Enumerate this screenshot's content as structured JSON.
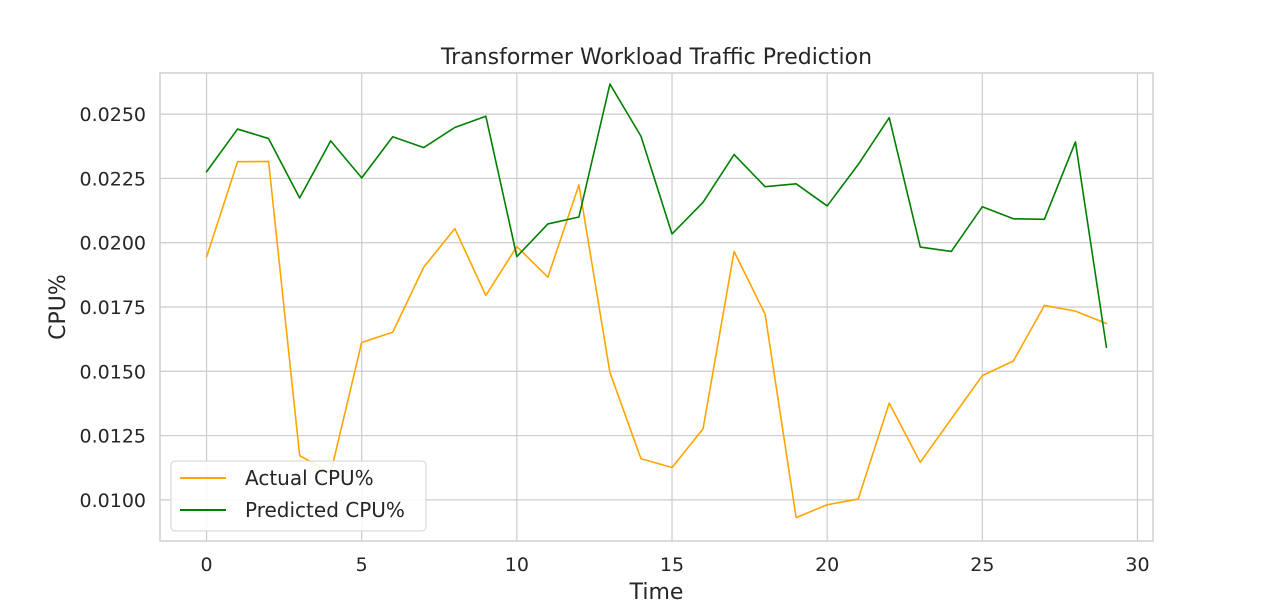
{
  "chart_data": {
    "type": "line",
    "title": "Transformer Workload Traffic Prediction",
    "xlabel": "Time",
    "ylabel": "CPU%",
    "xlim": [
      -1.5,
      30.5
    ],
    "ylim": [
      0.0084,
      0.0266
    ],
    "xticks": [
      0,
      5,
      10,
      15,
      20,
      25,
      30
    ],
    "xtick_labels": [
      "0",
      "5",
      "10",
      "15",
      "20",
      "25",
      "30"
    ],
    "yticks": [
      0.01,
      0.0125,
      0.015,
      0.0175,
      0.02,
      0.0225,
      0.025
    ],
    "ytick_labels": [
      "0.0100",
      "0.0125",
      "0.0150",
      "0.0175",
      "0.0200",
      "0.0225",
      "0.0250"
    ],
    "grid": true,
    "legend_position": "lower-left",
    "x": [
      0,
      1,
      2,
      3,
      4,
      5,
      6,
      7,
      8,
      9,
      10,
      11,
      12,
      13,
      14,
      15,
      16,
      17,
      18,
      19,
      20,
      21,
      22,
      23,
      24,
      25,
      26,
      27,
      28,
      29
    ],
    "series": [
      {
        "name": "Actual CPU%",
        "color": "#ffa500",
        "values": [
          0.01945,
          0.02315,
          0.02316,
          0.01172,
          0.01105,
          0.01612,
          0.01652,
          0.01905,
          0.02055,
          0.01795,
          0.01985,
          0.01866,
          0.02225,
          0.01495,
          0.0116,
          0.01126,
          0.01276,
          0.01966,
          0.01722,
          0.00931,
          0.00981,
          0.01003,
          0.01376,
          0.01146,
          0.01315,
          0.01483,
          0.0154,
          0.01756,
          0.01734,
          0.01686
        ]
      },
      {
        "name": "Predicted CPU%",
        "color": "#008000",
        "values": [
          0.02276,
          0.02442,
          0.02405,
          0.02174,
          0.02396,
          0.02252,
          0.02412,
          0.0237,
          0.02448,
          0.02492,
          0.01946,
          0.02073,
          0.021,
          0.02617,
          0.02414,
          0.02034,
          0.02157,
          0.02343,
          0.02218,
          0.02229,
          0.02143,
          0.02304,
          0.02486,
          0.01983,
          0.01966,
          0.0214,
          0.02093,
          0.02091,
          0.02392,
          0.01593
        ]
      }
    ]
  }
}
